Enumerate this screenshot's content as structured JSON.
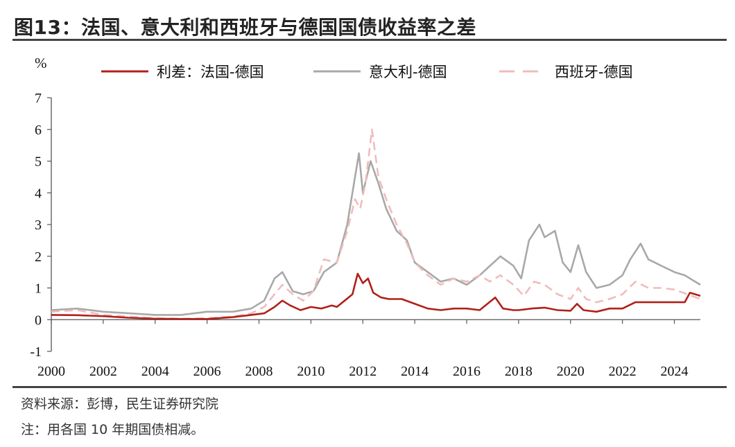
{
  "figure": {
    "title": "图13：法国、意大利和西班牙与德国国债收益率之差",
    "source": "资料来源：彭博，民生证券研究院",
    "note": "注：用各国 10 年期国债相减。"
  },
  "chart_data": {
    "type": "line",
    "ylabel": "%",
    "xlim": [
      2000,
      2025.0
    ],
    "ylim": [
      -1,
      7
    ],
    "yticks": [
      -1,
      0,
      1,
      2,
      3,
      4,
      5,
      6,
      7
    ],
    "xticks": [
      2000,
      2002,
      2004,
      2006,
      2008,
      2010,
      2012,
      2014,
      2016,
      2018,
      2020,
      2022,
      2024
    ],
    "legend_position": "top",
    "grid": false,
    "series": [
      {
        "name": "利差：法国-德国",
        "color": "#b0201a",
        "dash": "solid",
        "points": [
          [
            2000.0,
            0.15
          ],
          [
            2001.0,
            0.14
          ],
          [
            2002.0,
            0.11
          ],
          [
            2003.0,
            0.06
          ],
          [
            2004.0,
            0.03
          ],
          [
            2005.0,
            0.02
          ],
          [
            2006.0,
            0.02
          ],
          [
            2007.0,
            0.08
          ],
          [
            2007.7,
            0.15
          ],
          [
            2008.2,
            0.2
          ],
          [
            2008.6,
            0.4
          ],
          [
            2008.9,
            0.6
          ],
          [
            2009.2,
            0.45
          ],
          [
            2009.6,
            0.3
          ],
          [
            2010.0,
            0.4
          ],
          [
            2010.4,
            0.35
          ],
          [
            2010.8,
            0.45
          ],
          [
            2011.0,
            0.4
          ],
          [
            2011.3,
            0.6
          ],
          [
            2011.6,
            0.8
          ],
          [
            2011.8,
            1.45
          ],
          [
            2012.0,
            1.15
          ],
          [
            2012.2,
            1.3
          ],
          [
            2012.4,
            0.85
          ],
          [
            2012.7,
            0.7
          ],
          [
            2013.0,
            0.65
          ],
          [
            2013.5,
            0.65
          ],
          [
            2014.0,
            0.5
          ],
          [
            2014.5,
            0.35
          ],
          [
            2015.0,
            0.3
          ],
          [
            2015.5,
            0.35
          ],
          [
            2016.0,
            0.35
          ],
          [
            2016.5,
            0.3
          ],
          [
            2016.8,
            0.5
          ],
          [
            2017.1,
            0.7
          ],
          [
            2017.4,
            0.35
          ],
          [
            2017.8,
            0.3
          ],
          [
            2018.0,
            0.3
          ],
          [
            2018.5,
            0.35
          ],
          [
            2019.0,
            0.38
          ],
          [
            2019.5,
            0.3
          ],
          [
            2020.0,
            0.28
          ],
          [
            2020.25,
            0.5
          ],
          [
            2020.5,
            0.3
          ],
          [
            2021.0,
            0.25
          ],
          [
            2021.5,
            0.35
          ],
          [
            2022.0,
            0.35
          ],
          [
            2022.5,
            0.55
          ],
          [
            2023.0,
            0.55
          ],
          [
            2023.5,
            0.55
          ],
          [
            2024.0,
            0.55
          ],
          [
            2024.4,
            0.55
          ],
          [
            2024.6,
            0.85
          ],
          [
            2025.0,
            0.75
          ]
        ]
      },
      {
        "name": "意大利-德国",
        "color": "#a8a8a8",
        "dash": "solid",
        "points": [
          [
            2000.0,
            0.3
          ],
          [
            2001.0,
            0.35
          ],
          [
            2002.0,
            0.25
          ],
          [
            2003.0,
            0.2
          ],
          [
            2004.0,
            0.15
          ],
          [
            2005.0,
            0.15
          ],
          [
            2006.0,
            0.25
          ],
          [
            2007.0,
            0.25
          ],
          [
            2007.7,
            0.35
          ],
          [
            2008.2,
            0.6
          ],
          [
            2008.6,
            1.3
          ],
          [
            2008.9,
            1.5
          ],
          [
            2009.3,
            0.9
          ],
          [
            2009.7,
            0.8
          ],
          [
            2010.1,
            0.9
          ],
          [
            2010.5,
            1.5
          ],
          [
            2011.0,
            1.8
          ],
          [
            2011.4,
            3.0
          ],
          [
            2011.7,
            4.5
          ],
          [
            2011.85,
            5.25
          ],
          [
            2012.0,
            4.0
          ],
          [
            2012.3,
            5.0
          ],
          [
            2012.6,
            4.3
          ],
          [
            2012.9,
            3.5
          ],
          [
            2013.3,
            2.8
          ],
          [
            2013.7,
            2.5
          ],
          [
            2014.0,
            1.8
          ],
          [
            2014.5,
            1.5
          ],
          [
            2015.0,
            1.2
          ],
          [
            2015.5,
            1.3
          ],
          [
            2016.0,
            1.1
          ],
          [
            2016.5,
            1.4
          ],
          [
            2016.9,
            1.7
          ],
          [
            2017.3,
            2.0
          ],
          [
            2017.8,
            1.7
          ],
          [
            2018.1,
            1.3
          ],
          [
            2018.4,
            2.5
          ],
          [
            2018.8,
            3.0
          ],
          [
            2019.0,
            2.6
          ],
          [
            2019.4,
            2.8
          ],
          [
            2019.7,
            1.8
          ],
          [
            2020.0,
            1.5
          ],
          [
            2020.3,
            2.35
          ],
          [
            2020.6,
            1.5
          ],
          [
            2021.0,
            1.0
          ],
          [
            2021.5,
            1.1
          ],
          [
            2022.0,
            1.4
          ],
          [
            2022.3,
            1.9
          ],
          [
            2022.7,
            2.4
          ],
          [
            2023.0,
            1.9
          ],
          [
            2023.5,
            1.7
          ],
          [
            2024.0,
            1.5
          ],
          [
            2024.4,
            1.4
          ],
          [
            2024.7,
            1.25
          ],
          [
            2025.0,
            1.1
          ]
        ]
      },
      {
        "name": "西班牙-德国",
        "color": "#f0bcbc",
        "dash": "dashed",
        "points": [
          [
            2000.0,
            0.25
          ],
          [
            2001.0,
            0.3
          ],
          [
            2002.0,
            0.15
          ],
          [
            2003.0,
            0.1
          ],
          [
            2004.0,
            0.05
          ],
          [
            2005.0,
            0.03
          ],
          [
            2006.0,
            0.05
          ],
          [
            2007.0,
            0.1
          ],
          [
            2007.7,
            0.2
          ],
          [
            2008.2,
            0.4
          ],
          [
            2008.6,
            0.8
          ],
          [
            2008.9,
            1.1
          ],
          [
            2009.3,
            0.8
          ],
          [
            2009.7,
            0.6
          ],
          [
            2010.1,
            0.9
          ],
          [
            2010.5,
            1.9
          ],
          [
            2011.0,
            1.8
          ],
          [
            2011.4,
            2.8
          ],
          [
            2011.7,
            3.8
          ],
          [
            2011.9,
            3.5
          ],
          [
            2012.1,
            4.3
          ],
          [
            2012.35,
            6.0
          ],
          [
            2012.6,
            4.5
          ],
          [
            2012.9,
            3.8
          ],
          [
            2013.3,
            3.0
          ],
          [
            2013.7,
            2.4
          ],
          [
            2014.0,
            1.8
          ],
          [
            2014.5,
            1.4
          ],
          [
            2015.0,
            1.1
          ],
          [
            2015.5,
            1.3
          ],
          [
            2016.0,
            1.2
          ],
          [
            2016.5,
            1.4
          ],
          [
            2016.9,
            1.2
          ],
          [
            2017.3,
            1.4
          ],
          [
            2017.8,
            1.1
          ],
          [
            2018.2,
            0.75
          ],
          [
            2018.6,
            1.2
          ],
          [
            2019.0,
            1.1
          ],
          [
            2019.5,
            0.8
          ],
          [
            2020.0,
            0.65
          ],
          [
            2020.3,
            1.0
          ],
          [
            2020.6,
            0.65
          ],
          [
            2021.0,
            0.55
          ],
          [
            2021.5,
            0.65
          ],
          [
            2022.0,
            0.8
          ],
          [
            2022.5,
            1.2
          ],
          [
            2023.0,
            1.0
          ],
          [
            2023.5,
            1.0
          ],
          [
            2024.0,
            0.95
          ],
          [
            2024.5,
            0.8
          ],
          [
            2025.0,
            0.65
          ]
        ]
      }
    ]
  }
}
